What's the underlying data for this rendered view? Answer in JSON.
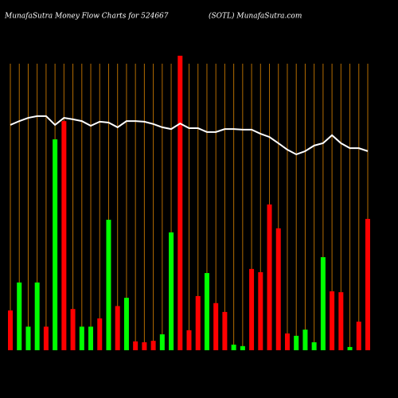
{
  "chart_data": {
    "type": "bar",
    "title": "MunafaSutra  Money Flow  Charts for 524667",
    "subtitle": "(SOTL) MunafaSutra.com",
    "categories": [
      null,
      null,
      null,
      null,
      null,
      null,
      null,
      null,
      null,
      null,
      null,
      null,
      null,
      null,
      null,
      null,
      null,
      null,
      null,
      null,
      null,
      null,
      null,
      null,
      null,
      null,
      null,
      null,
      null,
      null,
      null,
      null,
      null,
      null,
      null,
      null,
      null,
      null,
      null,
      null,
      null
    ],
    "values": [
      13.5,
      23,
      8,
      23,
      8,
      71.6,
      77.8,
      14,
      8,
      8,
      10.8,
      44.3,
      15,
      17.8,
      3,
      2.7,
      3.2,
      5.4,
      40,
      100,
      6.8,
      18.4,
      26.2,
      16,
      13,
      1.9,
      1.4,
      27.6,
      26.5,
      49.5,
      41.4,
      5.7,
      4.9,
      7,
      2.7,
      31.6,
      20,
      19.7,
      1.1,
      9.7,
      44.6
    ],
    "bar_colors": [
      "#ff0000",
      "#00ff00",
      "#00ff00",
      "#00ff00",
      "#ff0000",
      "#00ff00",
      "#ff0000",
      "#ff0000",
      "#00ff00",
      "#00ff00",
      "#ff0000",
      "#00ff00",
      "#ff0000",
      "#00ff00",
      "#ff0000",
      "#ff0000",
      "#ff0000",
      "#00ff00",
      "#00ff00",
      "#ff0000",
      "#ff0000",
      "#ff0000",
      "#00ff00",
      "#ff0000",
      "#ff0000",
      "#00ff00",
      "#00ff00",
      "#ff0000",
      "#ff0000",
      "#ff0000",
      "#ff0000",
      "#ff0000",
      "#00ff00",
      "#00ff00",
      "#00ff00",
      "#00ff00",
      "#ff0000",
      "#ff0000",
      "#00ff00",
      "#ff0000",
      "#ff0000"
    ],
    "line": {
      "color": "#ffffff",
      "values": [
        76.5,
        77.8,
        78.9,
        79.5,
        79.5,
        76.5,
        78.9,
        78.4,
        77.8,
        76.2,
        77.6,
        77.3,
        75.7,
        77.8,
        77.8,
        77.6,
        76.8,
        75.7,
        75.1,
        77,
        75.4,
        75.4,
        74.1,
        74.1,
        75.1,
        75.1,
        74.9,
        74.9,
        73.5,
        72.4,
        70.3,
        68.1,
        66.5,
        67.6,
        69.5,
        70.3,
        73,
        70.3,
        68.6,
        68.6,
        67.6
      ]
    },
    "ylim": [
      0,
      100
    ],
    "grid": true,
    "grid_color": "#b36b00"
  }
}
